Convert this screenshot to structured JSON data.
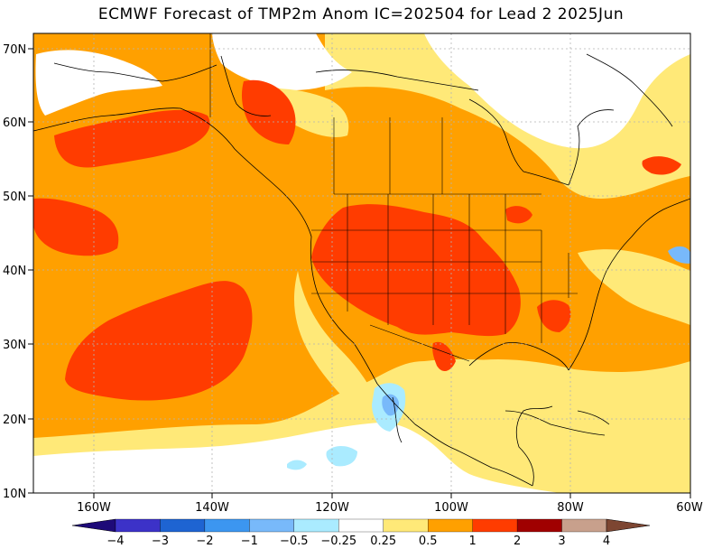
{
  "title": "ECMWF Forecast of TMP2m Anom IC=202504 for Lead 2 2025Jun",
  "lat_labels": [
    "70N",
    "60N",
    "50N",
    "40N",
    "30N",
    "20N",
    "10N"
  ],
  "lon_labels": [
    "160W",
    "140W",
    "120W",
    "100W",
    "80W",
    "60W"
  ],
  "colorbar": {
    "bins": [
      {
        "color": "#1e0a78"
      },
      {
        "color": "#3c32c8"
      },
      {
        "color": "#1e64d2"
      },
      {
        "color": "#3c96f0"
      },
      {
        "color": "#78b9fa"
      },
      {
        "color": "#aaebff"
      },
      {
        "color": "#ffffff"
      },
      {
        "color": "#ffe978"
      },
      {
        "color": "#ffa000"
      },
      {
        "color": "#ff3c00"
      },
      {
        "color": "#a00000"
      },
      {
        "color": "#c8a08c"
      },
      {
        "color": "#7d4632"
      }
    ],
    "tick_labels": [
      "−4",
      "−3",
      "−2",
      "−1",
      "−0.5",
      "−0.25",
      "0.25",
      "0.5",
      "1",
      "2",
      "3",
      "4"
    ]
  },
  "palette": {
    "light_orange": "#ffe978",
    "orange": "#ffa000",
    "red_orange": "#ff3c00",
    "light_blue": "#aaebff",
    "blue": "#78b9fa",
    "white": "#ffffff"
  }
}
